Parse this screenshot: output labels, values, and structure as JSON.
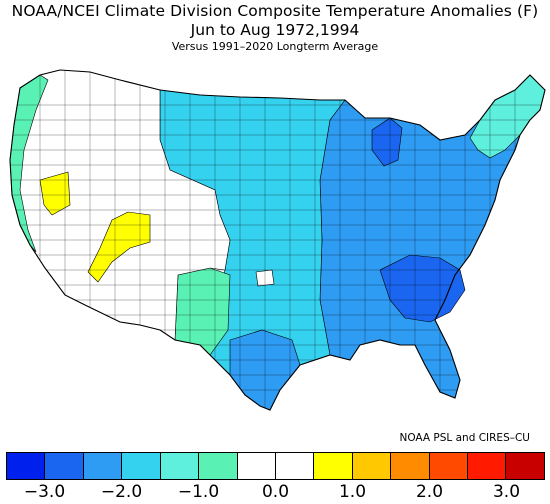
{
  "header": {
    "title": "NOAA/NCEI Climate Division Composite Temperature Anomalies (F)",
    "period": "Jun to Aug  1972,1994",
    "baseline": "Versus 1991–2020 Longterm Average"
  },
  "credit": "NOAA PSL and CIRES–CU",
  "legend": {
    "colors": [
      "#0020ee",
      "#1a66f0",
      "#2f9cf4",
      "#35d2f0",
      "#5ef0dc",
      "#5af2b4",
      "#ffffff",
      "#ffffff",
      "#ffff00",
      "#ffc800",
      "#ff8c00",
      "#ff4a00",
      "#ff1a00",
      "#c80000"
    ],
    "ticks": [
      {
        "label": "−3.0",
        "value": -3.0
      },
      {
        "label": "−2.0",
        "value": -2.0
      },
      {
        "label": "−1.0",
        "value": -1.0
      },
      {
        "label": "0.0",
        "value": 0.0
      },
      {
        "label": "1.0",
        "value": 1.0
      },
      {
        "label": "2.0",
        "value": 2.0
      },
      {
        "label": "3.0",
        "value": 3.0
      }
    ],
    "min": -3.5,
    "max": 3.5
  }
}
